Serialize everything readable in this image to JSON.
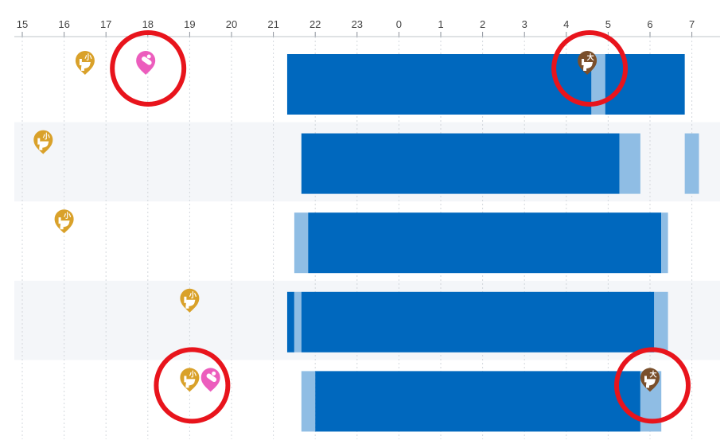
{
  "chart_data": {
    "type": "timeline",
    "axis": {
      "x_ticks": [
        "15",
        "16",
        "17",
        "18",
        "19",
        "20",
        "21",
        "22",
        "23",
        "0",
        "1",
        "2",
        "3",
        "4",
        "5",
        "6",
        "7"
      ],
      "start_hour": 15,
      "end_hour": 31,
      "grid": true
    },
    "colors": {
      "deep_sleep": "#0068be",
      "light_sleep": "#8fbde4",
      "row_stripe": "#f4f6f9",
      "pee": "#d9a12a",
      "poop": "#7a4f2b",
      "diaper": "#ec5dbd",
      "highlight": "#e8141c"
    },
    "rows": [
      {
        "segments": [
          {
            "start": 21.33,
            "end": 28.6,
            "kind": "deep"
          },
          {
            "start": 28.6,
            "end": 28.93,
            "kind": "light"
          },
          {
            "start": 28.93,
            "end": 30.83,
            "kind": "deep"
          }
        ],
        "events": [
          {
            "time": 16.5,
            "type": "pee",
            "label": "小",
            "icon": "toilet-icon"
          },
          {
            "time": 17.95,
            "type": "diaper",
            "label": "",
            "icon": "diaper-icon",
            "highlight": true
          },
          {
            "time": 28.5,
            "type": "poop",
            "label": "大",
            "icon": "toilet-icon",
            "highlight": true
          }
        ]
      },
      {
        "segments": [
          {
            "start": 21.67,
            "end": 29.27,
            "kind": "deep"
          },
          {
            "start": 29.27,
            "end": 29.77,
            "kind": "light"
          },
          {
            "start": 30.83,
            "end": 31.17,
            "kind": "light"
          }
        ],
        "events": [
          {
            "time": 15.5,
            "type": "pee",
            "label": "小",
            "icon": "toilet-icon"
          }
        ]
      },
      {
        "segments": [
          {
            "start": 21.5,
            "end": 21.83,
            "kind": "light"
          },
          {
            "start": 21.83,
            "end": 30.27,
            "kind": "deep"
          },
          {
            "start": 30.27,
            "end": 30.43,
            "kind": "light"
          }
        ],
        "events": [
          {
            "time": 16.0,
            "type": "pee",
            "label": "小",
            "icon": "toilet-icon"
          }
        ]
      },
      {
        "segments": [
          {
            "start": 21.33,
            "end": 21.5,
            "kind": "deep"
          },
          {
            "start": 21.5,
            "end": 21.67,
            "kind": "light"
          },
          {
            "start": 21.67,
            "end": 30.1,
            "kind": "deep"
          },
          {
            "start": 30.1,
            "end": 30.43,
            "kind": "light"
          }
        ],
        "events": [
          {
            "time": 19.0,
            "type": "pee",
            "label": "小",
            "icon": "toilet-icon"
          }
        ]
      },
      {
        "segments": [
          {
            "start": 21.67,
            "end": 22.0,
            "kind": "light"
          },
          {
            "start": 22.0,
            "end": 29.77,
            "kind": "deep"
          },
          {
            "start": 29.77,
            "end": 30.27,
            "kind": "light"
          }
        ],
        "events": [
          {
            "time": 19.0,
            "type": "pee",
            "label": "小",
            "icon": "toilet-icon",
            "highlight": true
          },
          {
            "time": 19.5,
            "type": "diaper",
            "label": "",
            "icon": "diaper-icon"
          },
          {
            "time": 30.0,
            "type": "poop",
            "label": "大",
            "icon": "toilet-icon",
            "highlight": true
          }
        ]
      }
    ]
  }
}
